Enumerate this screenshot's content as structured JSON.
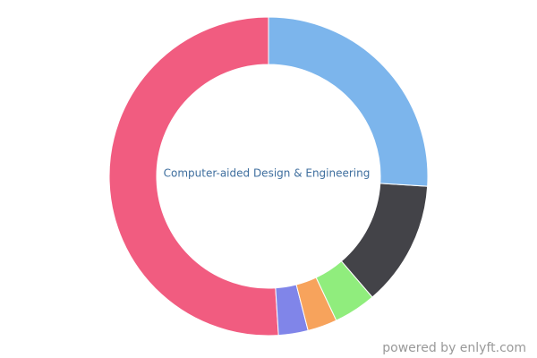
{
  "chart_data": {
    "type": "donut",
    "title": "Computer-aided Design & Engineering",
    "categories": [
      null,
      null,
      null,
      null,
      null,
      null
    ],
    "values": [
      26,
      12.7,
      4.3,
      3,
      3,
      51
    ],
    "colors": [
      "#7cb5ec",
      "#434348",
      "#90ed7d",
      "#f7a35c",
      "#8085e9",
      "#f15c80"
    ]
  },
  "footer": "powered by enlyft.com"
}
